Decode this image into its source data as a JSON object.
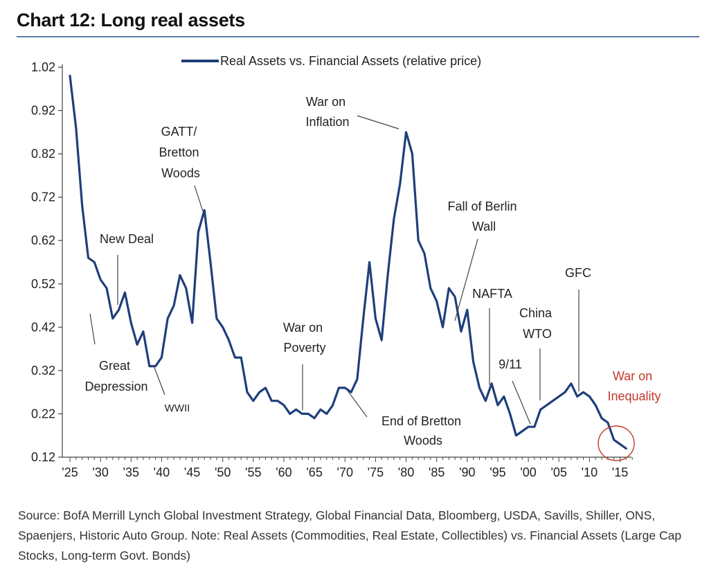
{
  "title": "Chart 12: Long real assets",
  "source": "Source:  BofA Merrill Lynch Global Investment Strategy, Global Financial Data, Bloomberg, USDA, Savills, Shiller, ONS, Spaenjers, Historic Auto Group. Note: Real Assets (Commodities, Real Estate, Collectibles) vs. Financial Assets (Large Cap Stocks, Long-term Govt. Bonds)",
  "colors": {
    "line": "#1f3f7a",
    "annotation_red": "#c0392b",
    "axis": "#444444",
    "title_rule": "#5a7ca8"
  },
  "chart_data": {
    "type": "line",
    "title": "Chart 12: Long real assets",
    "xlabel": "",
    "ylabel": "",
    "xlim": [
      1925,
      2017
    ],
    "ylim": [
      0.12,
      1.02
    ],
    "grid": false,
    "legend_position": "top",
    "y_ticks": [
      1.02,
      0.92,
      0.82,
      0.72,
      0.62,
      0.52,
      0.42,
      0.32,
      0.22,
      0.12
    ],
    "y_tick_labels": [
      "1.02",
      "0.92",
      "0.82",
      "0.72",
      "0.62",
      "0.52",
      "0.42",
      "0.32",
      "0.22",
      "0.12"
    ],
    "x_ticks": [
      1925,
      1930,
      1935,
      1940,
      1945,
      1950,
      1955,
      1960,
      1965,
      1970,
      1975,
      1980,
      1985,
      1990,
      1995,
      2000,
      2005,
      2010,
      2015
    ],
    "x_tick_labels": [
      "'25",
      "'30",
      "'35",
      "'40",
      "'45",
      "'50",
      "'55",
      "'60",
      "'65",
      "'70",
      "'75",
      "'80",
      "'85",
      "'90",
      "'95",
      "'00",
      "'05",
      "'10",
      "'15"
    ],
    "series": [
      {
        "name": "Real Assets vs. Financial Assets (relative price)",
        "x": [
          1925,
          1926,
          1927,
          1928,
          1929,
          1930,
          1931,
          1932,
          1933,
          1934,
          1935,
          1936,
          1937,
          1938,
          1939,
          1940,
          1941,
          1942,
          1943,
          1944,
          1945,
          1946,
          1947,
          1948,
          1949,
          1950,
          1951,
          1952,
          1953,
          1954,
          1955,
          1956,
          1957,
          1958,
          1959,
          1960,
          1961,
          1962,
          1963,
          1964,
          1965,
          1966,
          1967,
          1968,
          1969,
          1970,
          1971,
          1972,
          1973,
          1974,
          1975,
          1976,
          1977,
          1978,
          1979,
          1980,
          1981,
          1982,
          1983,
          1984,
          1985,
          1986,
          1987,
          1988,
          1989,
          1990,
          1991,
          1992,
          1993,
          1994,
          1995,
          1996,
          1997,
          1998,
          1999,
          2000,
          2001,
          2002,
          2003,
          2004,
          2005,
          2006,
          2007,
          2008,
          2009,
          2010,
          2011,
          2012,
          2013,
          2014,
          2015,
          2016
        ],
        "y": [
          1.0,
          0.88,
          0.7,
          0.58,
          0.57,
          0.53,
          0.51,
          0.44,
          0.46,
          0.5,
          0.43,
          0.38,
          0.41,
          0.33,
          0.33,
          0.35,
          0.44,
          0.47,
          0.54,
          0.51,
          0.43,
          0.64,
          0.69,
          0.57,
          0.44,
          0.42,
          0.39,
          0.35,
          0.35,
          0.27,
          0.25,
          0.27,
          0.28,
          0.25,
          0.25,
          0.24,
          0.22,
          0.23,
          0.22,
          0.22,
          0.21,
          0.23,
          0.22,
          0.24,
          0.28,
          0.28,
          0.27,
          0.3,
          0.44,
          0.57,
          0.44,
          0.39,
          0.54,
          0.67,
          0.75,
          0.87,
          0.82,
          0.62,
          0.59,
          0.51,
          0.48,
          0.42,
          0.51,
          0.49,
          0.41,
          0.46,
          0.34,
          0.28,
          0.25,
          0.29,
          0.24,
          0.26,
          0.22,
          0.17,
          0.18,
          0.19,
          0.19,
          0.23,
          0.24,
          0.25,
          0.26,
          0.27,
          0.29,
          0.26,
          0.27,
          0.26,
          0.24,
          0.21,
          0.2,
          0.16,
          0.15,
          0.14
        ]
      }
    ],
    "annotations": [
      {
        "lines": [
          "GATT/",
          "Bretton",
          "Woods"
        ]
      },
      {
        "lines": [
          "New Deal"
        ]
      },
      {
        "lines": [
          "Great",
          "Depression"
        ]
      },
      {
        "lines": [
          "WWII"
        ]
      },
      {
        "lines": [
          "War on",
          "Poverty"
        ]
      },
      {
        "lines": [
          "War on",
          "Inflation"
        ]
      },
      {
        "lines": [
          "End of Bretton",
          "Woods"
        ]
      },
      {
        "lines": [
          "Fall of Berlin",
          "Wall"
        ]
      },
      {
        "lines": [
          "NAFTA"
        ]
      },
      {
        "lines": [
          "China",
          "WTO"
        ]
      },
      {
        "lines": [
          "9/11"
        ]
      },
      {
        "lines": [
          "GFC"
        ]
      },
      {
        "lines": [
          "War on",
          "Inequality"
        ]
      }
    ]
  }
}
